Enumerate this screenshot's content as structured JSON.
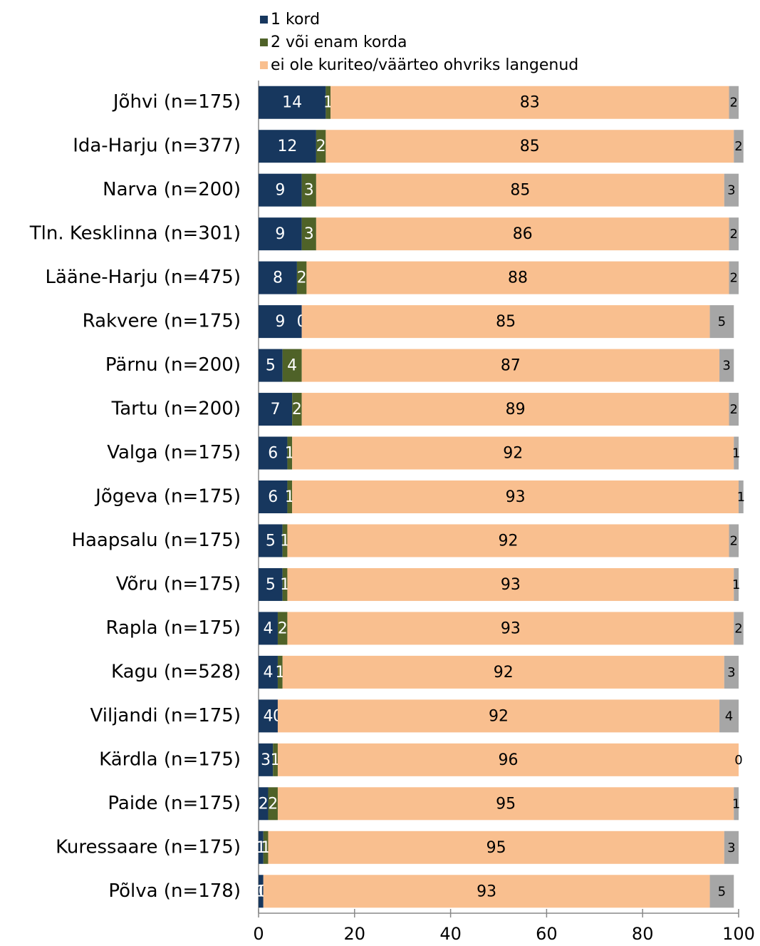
{
  "chart_data": {
    "type": "stacked-barh",
    "categories": [
      "Jõhvi (n=175)",
      "Ida-Harju (n=377)",
      "Narva (n=200)",
      "Tln. Kesklinna (n=301)",
      "Lääne-Harju (n=475)",
      "Rakvere (n=175)",
      "Pärnu (n=200)",
      "Tartu (n=200)",
      "Valga (n=175)",
      "Jõgeva (n=175)",
      "Haapsalu (n=175)",
      "Võru (n=175)",
      "Rapla (n=175)",
      "Kagu (n=528)",
      "Viljandi (n=175)",
      "Kärdla (n=175)",
      "Paide (n=175)",
      "Kuressaare (n=175)",
      "Põlva (n=178)"
    ],
    "series": [
      {
        "name": "1 kord",
        "color": "#17375e",
        "values": [
          14,
          12,
          9,
          9,
          8,
          9,
          5,
          7,
          6,
          6,
          5,
          5,
          4,
          4,
          4,
          3,
          2,
          1,
          1
        ]
      },
      {
        "name": "2 või enam korda",
        "color": "#4f6228",
        "values": [
          1,
          2,
          3,
          3,
          2,
          0,
          4,
          2,
          1,
          1,
          1,
          1,
          2,
          1,
          0,
          1,
          2,
          1,
          0
        ]
      },
      {
        "name": "ei ole kuriteo/väärteo ohvriks langenud",
        "color": "#f9bf8f",
        "values": [
          83,
          85,
          85,
          86,
          88,
          85,
          87,
          89,
          92,
          93,
          92,
          93,
          93,
          92,
          92,
          96,
          95,
          95,
          93
        ]
      },
      {
        "color": "#a6a6a6",
        "values": [
          2,
          2,
          3,
          2,
          2,
          5,
          3,
          2,
          1,
          1,
          2,
          1,
          2,
          3,
          4,
          0,
          1,
          3,
          5
        ]
      }
    ],
    "xlim": [
      0,
      100
    ],
    "xticks": [
      0,
      20,
      40,
      60,
      80,
      100
    ]
  }
}
